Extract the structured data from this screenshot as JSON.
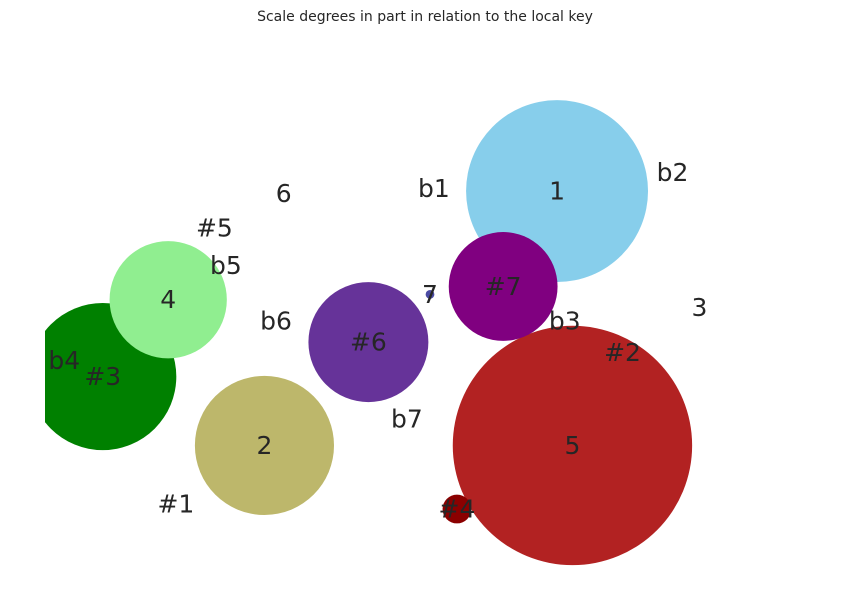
{
  "chart_data": {
    "type": "scatter",
    "title": "Scale degrees in part in relation to the local key",
    "xlabel": "",
    "ylabel": "",
    "grid": false,
    "legend": "none",
    "xlim": [
      0,
      100
    ],
    "ylim": [
      0,
      100
    ],
    "points": [
      {
        "label": "1",
        "x": 66.5,
        "y": 71.5,
        "size": 26000,
        "color": "#87CEEB"
      },
      {
        "label": "b2",
        "x": 81.5,
        "y": 75.0,
        "size": 0,
        "color": "#6495ED"
      },
      {
        "label": "b1",
        "x": 50.5,
        "y": 72.0,
        "size": 0,
        "color": "#ADD8E6"
      },
      {
        "label": "6",
        "x": 31.0,
        "y": 71.0,
        "size": 0,
        "color": "#FFE4B5"
      },
      {
        "label": "#5",
        "x": 22.0,
        "y": 64.5,
        "size": 0,
        "color": "#DDA0DD"
      },
      {
        "label": "b5",
        "x": 23.5,
        "y": 57.5,
        "size": 0,
        "color": "#F0E68C"
      },
      {
        "label": "4",
        "x": 16.0,
        "y": 51.0,
        "size": 10800,
        "color": "#90EE90"
      },
      {
        "label": "b6",
        "x": 30.0,
        "y": 47.0,
        "size": 0,
        "color": "#FFB6C1"
      },
      {
        "label": "7",
        "x": 50.0,
        "y": 52.0,
        "size": 60,
        "color": "#4B4BA3"
      },
      {
        "label": "#7",
        "x": 59.5,
        "y": 53.5,
        "size": 9300,
        "color": "#800080"
      },
      {
        "label": "b3",
        "x": 67.5,
        "y": 47.0,
        "size": 0,
        "color": "#FFA07A"
      },
      {
        "label": "3",
        "x": 85.0,
        "y": 49.5,
        "size": 0,
        "color": "#E0FFFF"
      },
      {
        "label": "#6",
        "x": 42.0,
        "y": 43.0,
        "size": 11300,
        "color": "#663399"
      },
      {
        "label": "b4",
        "x": 2.5,
        "y": 39.5,
        "size": 0,
        "color": "#FFDAB9"
      },
      {
        "label": "#3",
        "x": 7.5,
        "y": 36.5,
        "size": 17000,
        "color": "#008000"
      },
      {
        "label": "#2",
        "x": 75.0,
        "y": 41.0,
        "size": 0,
        "color": "#D8BFD8"
      },
      {
        "label": "b7",
        "x": 47.0,
        "y": 28.5,
        "size": 0,
        "color": "#B0C4DE"
      },
      {
        "label": "2",
        "x": 28.5,
        "y": 23.5,
        "size": 15200,
        "color": "#BDB76B"
      },
      {
        "label": "5",
        "x": 68.5,
        "y": 23.5,
        "size": 45000,
        "color": "#B22222"
      },
      {
        "label": "#1",
        "x": 17.0,
        "y": 12.5,
        "size": 0,
        "color": "#F5DEB3"
      },
      {
        "label": "#4",
        "x": 53.5,
        "y": 11.5,
        "size": 650,
        "color": "#8B0000"
      }
    ]
  }
}
